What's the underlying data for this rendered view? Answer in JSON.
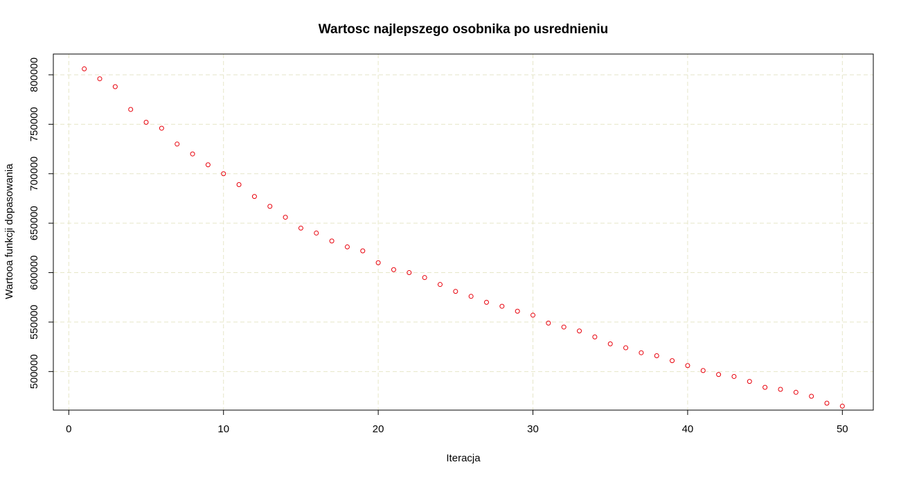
{
  "chart_data": {
    "type": "scatter",
    "title": "Wartosc najlepszego osobnika po usrednieniu",
    "xlabel": "Iteracja",
    "ylabel": "Wartooa funkcji dopasowania",
    "xlim": [
      -1,
      52
    ],
    "ylim": [
      461000,
      821000
    ],
    "xticks": [
      0,
      10,
      20,
      30,
      40,
      50
    ],
    "yticks": [
      500000,
      550000,
      600000,
      650000,
      700000,
      750000,
      800000
    ],
    "xtick_labels": [
      "0",
      "10",
      "20",
      "30",
      "40",
      "50"
    ],
    "ytick_labels": [
      "500000",
      "550000",
      "600000",
      "650000",
      "700000",
      "750000",
      "800000"
    ],
    "grid": true,
    "colors": {
      "points": "#e8000b",
      "grid": "#e6e6c8",
      "axis": "#000000"
    },
    "x": [
      1,
      2,
      3,
      4,
      5,
      6,
      7,
      8,
      9,
      10,
      11,
      12,
      13,
      14,
      15,
      16,
      17,
      18,
      19,
      20,
      21,
      22,
      23,
      24,
      25,
      26,
      27,
      28,
      29,
      30,
      31,
      32,
      33,
      34,
      35,
      36,
      37,
      38,
      39,
      40,
      41,
      42,
      43,
      44,
      45,
      46,
      47,
      48,
      49,
      50
    ],
    "y": [
      806000,
      796000,
      788000,
      765000,
      752000,
      746000,
      730000,
      720000,
      709000,
      700000,
      689000,
      677000,
      667000,
      656000,
      645000,
      640000,
      632000,
      626000,
      622000,
      610000,
      603000,
      600000,
      595000,
      588000,
      581000,
      576000,
      570000,
      566000,
      561000,
      557000,
      549000,
      545000,
      541000,
      535000,
      528000,
      524000,
      519000,
      516000,
      511000,
      506000,
      501000,
      497000,
      495000,
      490000,
      484000,
      482000,
      479000,
      475000,
      468000,
      465000
    ]
  }
}
